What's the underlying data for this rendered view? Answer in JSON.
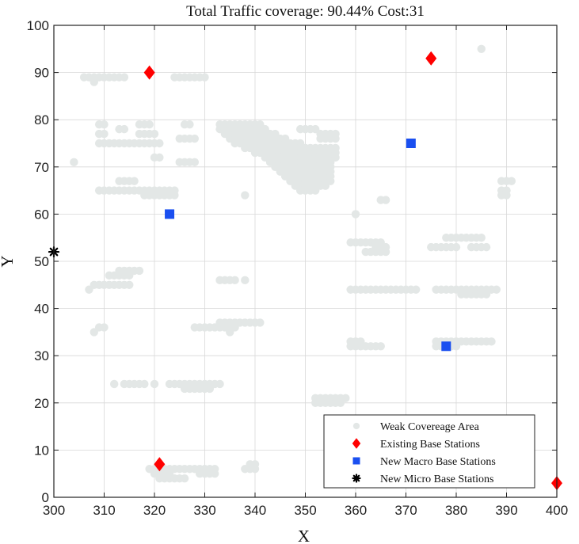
{
  "chart_data": {
    "type": "scatter",
    "title": "Total Traffic coverage: 90.44% Cost:31",
    "xlabel": "X",
    "ylabel": "Y",
    "xlim": [
      300,
      400
    ],
    "ylim": [
      0,
      100
    ],
    "xticks": [
      "300",
      "310",
      "320",
      "330",
      "340",
      "350",
      "360",
      "370",
      "380",
      "390",
      "400"
    ],
    "yticks": [
      "0",
      "10",
      "20",
      "30",
      "40",
      "50",
      "60",
      "70",
      "80",
      "90",
      "100"
    ],
    "grid": true,
    "legend_position": "bottom-right",
    "series": [
      {
        "name": "Weak Covereage Area",
        "marker": "circle",
        "color": "#e3e7e6",
        "segments": [
          [
            306,
            314,
            89
          ],
          [
            308,
            308,
            88
          ],
          [
            324,
            330,
            89
          ],
          [
            309,
            321,
            75
          ],
          [
            309,
            310,
            79
          ],
          [
            309,
            310,
            77
          ],
          [
            313,
            314,
            78
          ],
          [
            317,
            319,
            79
          ],
          [
            317,
            320,
            77
          ],
          [
            320,
            321,
            72
          ],
          [
            325,
            328,
            76
          ],
          [
            326,
            327,
            79
          ],
          [
            325,
            328,
            71
          ],
          [
            304,
            304,
            71
          ],
          [
            309,
            324,
            65
          ],
          [
            313,
            316,
            67
          ],
          [
            318,
            322,
            64
          ],
          [
            323,
            324,
            64
          ],
          [
            333,
            341,
            79
          ],
          [
            333,
            342,
            78
          ],
          [
            334,
            344,
            77
          ],
          [
            335,
            346,
            76
          ],
          [
            336,
            349,
            75
          ],
          [
            338,
            356,
            74
          ],
          [
            340,
            356,
            73
          ],
          [
            342,
            356,
            72
          ],
          [
            343,
            355,
            71
          ],
          [
            344,
            355,
            70
          ],
          [
            345,
            355,
            69
          ],
          [
            346,
            355,
            68
          ],
          [
            347,
            355,
            67
          ],
          [
            348,
            354,
            66
          ],
          [
            349,
            352,
            65
          ],
          [
            349,
            352,
            78
          ],
          [
            353,
            356,
            77
          ],
          [
            353,
            356,
            76
          ],
          [
            338,
            338,
            64
          ],
          [
            360,
            360,
            60
          ],
          [
            365,
            366,
            63
          ],
          [
            359,
            365,
            54
          ],
          [
            362,
            366,
            52
          ],
          [
            364,
            366,
            53
          ],
          [
            378,
            382,
            55
          ],
          [
            375,
            380,
            53
          ],
          [
            383,
            385,
            55
          ],
          [
            383,
            386,
            53
          ],
          [
            389,
            391,
            67
          ],
          [
            389,
            390,
            65
          ],
          [
            389,
            390,
            64
          ],
          [
            385,
            385,
            95
          ],
          [
            308,
            315,
            45
          ],
          [
            311,
            315,
            47
          ],
          [
            313,
            317,
            48
          ],
          [
            307,
            307,
            44
          ],
          [
            333,
            336,
            46
          ],
          [
            338,
            338,
            46
          ],
          [
            359,
            372,
            44
          ],
          [
            376,
            388,
            44
          ],
          [
            381,
            386,
            43
          ],
          [
            309,
            310,
            36
          ],
          [
            308,
            308,
            35
          ],
          [
            328,
            336,
            36
          ],
          [
            333,
            341,
            37
          ],
          [
            335,
            335,
            35
          ],
          [
            359,
            365,
            32
          ],
          [
            359,
            361,
            33
          ],
          [
            376,
            387,
            33
          ],
          [
            376,
            380,
            32
          ],
          [
            312,
            312,
            24
          ],
          [
            314,
            318,
            24
          ],
          [
            320,
            320,
            24
          ],
          [
            323,
            333,
            24
          ],
          [
            327,
            331,
            23
          ],
          [
            326,
            326,
            23
          ],
          [
            352,
            358,
            21
          ],
          [
            352,
            357,
            20
          ],
          [
            319,
            332,
            6
          ],
          [
            320,
            323,
            5
          ],
          [
            321,
            324,
            4
          ],
          [
            325,
            326,
            4
          ],
          [
            329,
            332,
            5
          ],
          [
            338,
            340,
            6
          ],
          [
            339,
            340,
            7
          ]
        ]
      },
      {
        "name": "Existing Base Stations",
        "marker": "diamond",
        "color": "#ff0000",
        "points": [
          [
            319,
            90
          ],
          [
            375,
            93
          ],
          [
            321,
            7
          ],
          [
            400,
            3
          ]
        ]
      },
      {
        "name": "New Macro Base Stations",
        "marker": "square",
        "color": "#1a4ff0",
        "points": [
          [
            323,
            60
          ],
          [
            371,
            75
          ],
          [
            378,
            32
          ]
        ]
      },
      {
        "name": "New Micro Base Stations",
        "marker": "star",
        "color": "#000000",
        "points": [
          [
            300,
            52
          ]
        ]
      }
    ]
  }
}
